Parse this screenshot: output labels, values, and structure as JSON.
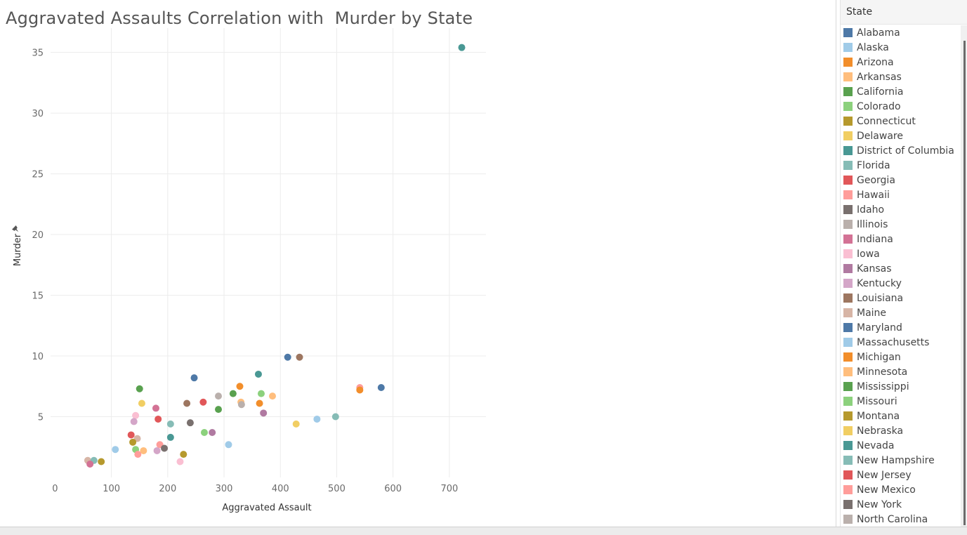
{
  "chart_title": "Aggravated Assaults Correlation with  Murder by State",
  "legend": {
    "title": "State",
    "items": [
      {
        "label": "Alabama",
        "color": "#4e79a7"
      },
      {
        "label": "Alaska",
        "color": "#a0cbe8"
      },
      {
        "label": "Arizona",
        "color": "#f28e2b"
      },
      {
        "label": "Arkansas",
        "color": "#ffbe7d"
      },
      {
        "label": "California",
        "color": "#59a14f"
      },
      {
        "label": "Colorado",
        "color": "#8cd17d"
      },
      {
        "label": "Connecticut",
        "color": "#b6992d"
      },
      {
        "label": "Delaware",
        "color": "#f1ce63"
      },
      {
        "label": "District of Columbia",
        "color": "#499894"
      },
      {
        "label": "Florida",
        "color": "#86bcb6"
      },
      {
        "label": "Georgia",
        "color": "#e15759"
      },
      {
        "label": "Hawaii",
        "color": "#ff9d9a"
      },
      {
        "label": "Idaho",
        "color": "#79706e"
      },
      {
        "label": "Illinois",
        "color": "#bab0ac"
      },
      {
        "label": "Indiana",
        "color": "#d37295"
      },
      {
        "label": "Iowa",
        "color": "#fabfd2"
      },
      {
        "label": "Kansas",
        "color": "#b07aa1"
      },
      {
        "label": "Kentucky",
        "color": "#d4a6c8"
      },
      {
        "label": "Louisiana",
        "color": "#9d7660"
      },
      {
        "label": "Maine",
        "color": "#d7b5a6"
      },
      {
        "label": "Maryland",
        "color": "#4e79a7"
      },
      {
        "label": "Massachusetts",
        "color": "#a0cbe8"
      },
      {
        "label": "Michigan",
        "color": "#f28e2b"
      },
      {
        "label": "Minnesota",
        "color": "#ffbe7d"
      },
      {
        "label": "Mississippi",
        "color": "#59a14f"
      },
      {
        "label": "Missouri",
        "color": "#8cd17d"
      },
      {
        "label": "Montana",
        "color": "#b6992d"
      },
      {
        "label": "Nebraska",
        "color": "#f1ce63"
      },
      {
        "label": "Nevada",
        "color": "#499894"
      },
      {
        "label": "New Hampshire",
        "color": "#86bcb6"
      },
      {
        "label": "New Jersey",
        "color": "#e15759"
      },
      {
        "label": "New Mexico",
        "color": "#ff9d9a"
      },
      {
        "label": "New York",
        "color": "#79706e"
      },
      {
        "label": "North Carolina",
        "color": "#bab0ac"
      }
    ]
  },
  "chart_data": {
    "type": "scatter",
    "title": "Aggravated Assaults Correlation with  Murder by State",
    "xlabel": "Aggravated Assault",
    "ylabel": "Murder",
    "xlim": [
      -8,
      765
    ],
    "ylim": [
      0,
      37
    ],
    "xticks": [
      0,
      100,
      200,
      300,
      400,
      500,
      600,
      700
    ],
    "yticks": [
      5,
      10,
      15,
      20,
      25,
      30,
      35
    ],
    "grid": true,
    "legend_position": "right",
    "points": [
      {
        "x": 722,
        "y": 35.4,
        "color": "#499894"
      },
      {
        "x": 413,
        "y": 9.9,
        "color": "#4e79a7"
      },
      {
        "x": 434,
        "y": 9.9,
        "color": "#9d7660"
      },
      {
        "x": 361,
        "y": 8.5,
        "color": "#499894"
      },
      {
        "x": 247,
        "y": 8.2,
        "color": "#4e79a7"
      },
      {
        "x": 579,
        "y": 7.4,
        "color": "#4e79a7"
      },
      {
        "x": 541,
        "y": 7.4,
        "color": "#ff9d9a"
      },
      {
        "x": 541,
        "y": 7.2,
        "color": "#f28e2b"
      },
      {
        "x": 328,
        "y": 7.5,
        "color": "#f28e2b"
      },
      {
        "x": 150,
        "y": 7.3,
        "color": "#59a14f"
      },
      {
        "x": 316,
        "y": 6.9,
        "color": "#59a14f"
      },
      {
        "x": 366,
        "y": 6.9,
        "color": "#8cd17d"
      },
      {
        "x": 386,
        "y": 6.7,
        "color": "#ffbe7d"
      },
      {
        "x": 290,
        "y": 6.7,
        "color": "#bab0ac"
      },
      {
        "x": 263,
        "y": 6.2,
        "color": "#e15759"
      },
      {
        "x": 330,
        "y": 6.2,
        "color": "#ffbe7d"
      },
      {
        "x": 331,
        "y": 6.0,
        "color": "#bab0ac"
      },
      {
        "x": 363,
        "y": 6.1,
        "color": "#f28e2b"
      },
      {
        "x": 234,
        "y": 6.1,
        "color": "#9d7660"
      },
      {
        "x": 154,
        "y": 6.1,
        "color": "#f1ce63"
      },
      {
        "x": 179,
        "y": 5.7,
        "color": "#d37295"
      },
      {
        "x": 290,
        "y": 5.6,
        "color": "#59a14f"
      },
      {
        "x": 370,
        "y": 5.3,
        "color": "#b07aa1"
      },
      {
        "x": 498,
        "y": 5.0,
        "color": "#86bcb6"
      },
      {
        "x": 465,
        "y": 4.8,
        "color": "#a0cbe8"
      },
      {
        "x": 183,
        "y": 4.8,
        "color": "#e15759"
      },
      {
        "x": 143,
        "y": 5.1,
        "color": "#fabfd2"
      },
      {
        "x": 140,
        "y": 4.6,
        "color": "#d4a6c8"
      },
      {
        "x": 240,
        "y": 4.5,
        "color": "#79706e"
      },
      {
        "x": 205,
        "y": 4.4,
        "color": "#86bcb6"
      },
      {
        "x": 428,
        "y": 4.4,
        "color": "#f1ce63"
      },
      {
        "x": 265,
        "y": 3.7,
        "color": "#8cd17d"
      },
      {
        "x": 279,
        "y": 3.7,
        "color": "#b07aa1"
      },
      {
        "x": 135,
        "y": 3.5,
        "color": "#e15759"
      },
      {
        "x": 146,
        "y": 3.2,
        "color": "#d7b5a6"
      },
      {
        "x": 205,
        "y": 3.3,
        "color": "#499894"
      },
      {
        "x": 138,
        "y": 2.9,
        "color": "#b6992d"
      },
      {
        "x": 308,
        "y": 2.7,
        "color": "#a0cbe8"
      },
      {
        "x": 186,
        "y": 2.7,
        "color": "#ff9d9a"
      },
      {
        "x": 194,
        "y": 2.4,
        "color": "#79706e"
      },
      {
        "x": 107,
        "y": 2.3,
        "color": "#a0cbe8"
      },
      {
        "x": 143,
        "y": 2.3,
        "color": "#8cd17d"
      },
      {
        "x": 157,
        "y": 2.2,
        "color": "#ffbe7d"
      },
      {
        "x": 181,
        "y": 2.2,
        "color": "#d4a6c8"
      },
      {
        "x": 147,
        "y": 1.9,
        "color": "#ff9d9a"
      },
      {
        "x": 228,
        "y": 1.9,
        "color": "#b6992d"
      },
      {
        "x": 222,
        "y": 1.3,
        "color": "#fabfd2"
      },
      {
        "x": 58,
        "y": 1.4,
        "color": "#d7b5a6"
      },
      {
        "x": 69,
        "y": 1.4,
        "color": "#86bcb6"
      },
      {
        "x": 62,
        "y": 1.1,
        "color": "#d37295"
      },
      {
        "x": 82,
        "y": 1.3,
        "color": "#b6992d"
      }
    ]
  }
}
